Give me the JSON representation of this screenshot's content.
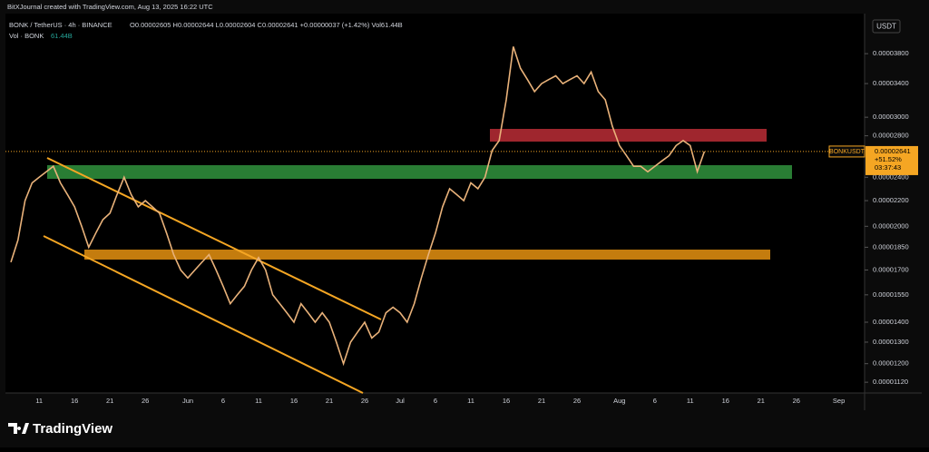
{
  "chart_data": {
    "type": "line",
    "caption": "BitXJournal created with TradingView.com, Aug 13, 2025 16:22 UTC",
    "title": "BONK / TetherUS · 4h · BINANCE",
    "ohlc": "O0.00002605 H0.00002644 L0.00002604 C0.00002641 +0.00000037 (+1.42%) Vol61.44B",
    "volume_label": "Vol · BONK",
    "volume_value": "61.44B",
    "currency": "USDT",
    "price_tag": {
      "symbol": "BONKUSDT",
      "price": "0.00002641",
      "change": "+51.52%",
      "countdown": "03:37:43"
    },
    "brand": "TradingView",
    "log_scale": true,
    "color": "#e9b27a",
    "categories": [
      null,
      null,
      null,
      null,
      "11",
      null,
      null,
      null,
      null,
      "16",
      null,
      null,
      null,
      null,
      "21",
      null,
      null,
      null,
      null,
      "26",
      null,
      null,
      null,
      null,
      null,
      "Jun",
      null,
      null,
      null,
      null,
      "6",
      null,
      null,
      null,
      null,
      "11",
      null,
      null,
      null,
      null,
      "16",
      null,
      null,
      null,
      null,
      "21",
      null,
      null,
      null,
      null,
      "26",
      null,
      null,
      null,
      null,
      "Jul",
      null,
      null,
      null,
      null,
      "6",
      null,
      null,
      null,
      null,
      "11",
      null,
      null,
      null,
      null,
      "16",
      null,
      null,
      null,
      null,
      "21",
      null,
      null,
      null,
      null,
      "26",
      null,
      null,
      null,
      null,
      null,
      "Aug",
      null,
      null,
      null,
      null,
      "6",
      null,
      null,
      null,
      null,
      "11",
      null,
      null,
      null,
      null,
      "16",
      null,
      null,
      null,
      null,
      "21",
      null,
      null,
      null,
      null,
      "26",
      null,
      null,
      null,
      null,
      null,
      "Sep"
    ],
    "values": [
      1.75e-05,
      1.9e-05,
      2.2e-05,
      2.35e-05,
      2.4e-05,
      2.45e-05,
      2.5e-05,
      2.35e-05,
      2.25e-05,
      2.15e-05,
      2e-05,
      1.85e-05,
      1.95e-05,
      2.05e-05,
      2.1e-05,
      2.25e-05,
      2.4e-05,
      2.25e-05,
      2.15e-05,
      2.2e-05,
      2.15e-05,
      2.1e-05,
      1.95e-05,
      1.8e-05,
      1.7e-05,
      1.65e-05,
      1.7e-05,
      1.75e-05,
      1.8e-05,
      1.7e-05,
      1.6e-05,
      1.5e-05,
      1.55e-05,
      1.6e-05,
      1.7e-05,
      1.78e-05,
      1.7e-05,
      1.55e-05,
      1.5e-05,
      1.45e-05,
      1.4e-05,
      1.5e-05,
      1.45e-05,
      1.4e-05,
      1.45e-05,
      1.4e-05,
      1.3e-05,
      1.2e-05,
      1.3e-05,
      1.35e-05,
      1.4e-05,
      1.32e-05,
      1.35e-05,
      1.45e-05,
      1.48e-05,
      1.45e-05,
      1.4e-05,
      1.5e-05,
      1.65e-05,
      1.8e-05,
      1.95e-05,
      2.15e-05,
      2.3e-05,
      2.25e-05,
      2.2e-05,
      2.35e-05,
      2.3e-05,
      2.4e-05,
      2.65e-05,
      2.75e-05,
      3.2e-05,
      3.9e-05,
      3.6e-05,
      3.45e-05,
      3.3e-05,
      3.4e-05,
      3.45e-05,
      3.5e-05,
      3.4e-05,
      3.45e-05,
      3.5e-05,
      3.4e-05,
      3.55e-05,
      3.3e-05,
      3.2e-05,
      2.9e-05,
      2.7e-05,
      2.6e-05,
      2.5e-05,
      2.5e-05,
      2.45e-05,
      2.5e-05,
      2.55e-05,
      2.6e-05,
      2.7e-05,
      2.75e-05,
      2.7e-05,
      2.45e-05,
      2.641e-05,
      null,
      null,
      null,
      null,
      null,
      null,
      null,
      null,
      null,
      null,
      null,
      null,
      null,
      null,
      null,
      null,
      null,
      null,
      null
    ],
    "ylim": [
      1.076e-05,
      4.41e-05
    ],
    "yticks": [
      {
        "value": 3.8e-05,
        "label": "0.00003800"
      },
      {
        "value": 3.4e-05,
        "label": "0.00003400"
      },
      {
        "value": 3e-05,
        "label": "0.00003000"
      },
      {
        "value": 2.8e-05,
        "label": "0.00002800"
      },
      {
        "value": 2.4e-05,
        "label": "0.00002400"
      },
      {
        "value": 2.2e-05,
        "label": "0.00002200"
      },
      {
        "value": 2e-05,
        "label": "0.00002000"
      },
      {
        "value": 1.85e-05,
        "label": "0.00001850"
      },
      {
        "value": 1.7e-05,
        "label": "0.00001700"
      },
      {
        "value": 1.55e-05,
        "label": "0.00001550"
      },
      {
        "value": 1.4e-05,
        "label": "0.00001400"
      },
      {
        "value": 1.3e-05,
        "label": "0.00001300"
      },
      {
        "value": 1.2e-05,
        "label": "0.00001200"
      },
      {
        "value": 1.12e-05,
        "label": "0.00001120"
      }
    ]
  }
}
